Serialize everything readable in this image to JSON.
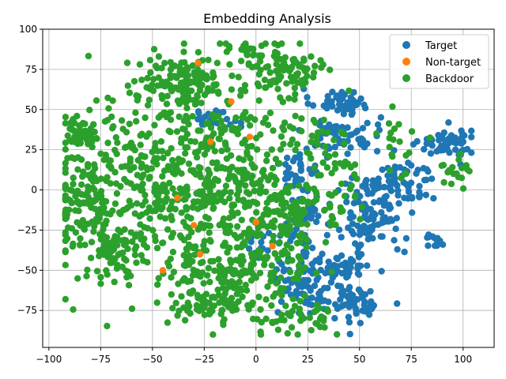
{
  "chart_data": {
    "type": "scatter",
    "title": "Embedding Analysis",
    "xlabel": "",
    "ylabel": "",
    "xlim": [
      -103,
      115
    ],
    "ylim": [
      -98,
      100
    ],
    "xticks": [
      -100,
      -75,
      -50,
      -25,
      0,
      25,
      50,
      75,
      100
    ],
    "yticks": [
      -75,
      -50,
      -25,
      0,
      25,
      50,
      75,
      100
    ],
    "grid": true,
    "legend_position": "top-right",
    "series": [
      {
        "name": "Target",
        "color": "#1f77b4",
        "clusters": [
          {
            "center": [
              40,
              55
            ],
            "spread": [
              7,
              4
            ],
            "count": 45
          },
          {
            "center": [
              42,
              35
            ],
            "spread": [
              9,
              6
            ],
            "count": 60
          },
          {
            "center": [
              93,
              29
            ],
            "spread": [
              7,
              5
            ],
            "count": 55
          },
          {
            "center": [
              68,
              3
            ],
            "spread": [
              10,
              8
            ],
            "count": 80
          },
          {
            "center": [
              55,
              -18
            ],
            "spread": [
              8,
              12
            ],
            "count": 90
          },
          {
            "center": [
              22,
              -15
            ],
            "spread": [
              6,
              8
            ],
            "count": 50
          },
          {
            "center": [
              23,
              -55
            ],
            "spread": [
              8,
              12
            ],
            "count": 90
          },
          {
            "center": [
              43,
              -47
            ],
            "spread": [
              6,
              4
            ],
            "count": 40
          },
          {
            "center": [
              47,
              -70
            ],
            "spread": [
              8,
              6
            ],
            "count": 60
          },
          {
            "center": [
              20,
              14
            ],
            "spread": [
              5,
              6
            ],
            "count": 30
          },
          {
            "center": [
              -20,
              44
            ],
            "spread": [
              6,
              3
            ],
            "count": 25
          },
          {
            "center": [
              85,
              -31
            ],
            "spread": [
              3,
              2
            ],
            "count": 12
          },
          {
            "center": [
              2,
              -37
            ],
            "spread": [
              3,
              4
            ],
            "count": 12
          }
        ]
      },
      {
        "name": "Non-target",
        "color": "#ff7f0e",
        "points": [
          [
            -30,
            -22
          ],
          [
            -27,
            -40
          ],
          [
            -45,
            -50
          ],
          [
            -3,
            33
          ],
          [
            -28,
            79
          ],
          [
            0,
            -20
          ],
          [
            -22,
            30
          ],
          [
            8,
            -35
          ],
          [
            -12,
            55
          ],
          [
            -38,
            -5
          ]
        ]
      },
      {
        "name": "Backdoor",
        "color": "#2ca02c",
        "clusters": [
          {
            "center": [
              -45,
              5
            ],
            "spread": [
              28,
              32
            ],
            "count": 420
          },
          {
            "center": [
              -10,
              10
            ],
            "spread": [
              22,
              34
            ],
            "count": 320
          },
          {
            "center": [
              -85,
              35
            ],
            "spread": [
              4,
              4
            ],
            "count": 40
          },
          {
            "center": [
              -80,
              -5
            ],
            "spread": [
              8,
              12
            ],
            "count": 90
          },
          {
            "center": [
              -70,
              -40
            ],
            "spread": [
              7,
              10
            ],
            "count": 60
          },
          {
            "center": [
              -35,
              68
            ],
            "spread": [
              10,
              7
            ],
            "count": 110
          },
          {
            "center": [
              15,
              75
            ],
            "spread": [
              10,
              8
            ],
            "count": 80
          },
          {
            "center": [
              -15,
              -60
            ],
            "spread": [
              14,
              14
            ],
            "count": 140
          },
          {
            "center": [
              10,
              -30
            ],
            "spread": [
              10,
              18
            ],
            "count": 100
          },
          {
            "center": [
              35,
              10
            ],
            "spread": [
              10,
              20
            ],
            "count": 50
          },
          {
            "center": [
              25,
              -80
            ],
            "spread": [
              10,
              5
            ],
            "count": 40
          },
          {
            "center": [
              -5,
              88
            ],
            "spread": [
              3,
              2
            ],
            "count": 15
          },
          {
            "center": [
              95,
              10
            ],
            "spread": [
              4,
              6
            ],
            "count": 18
          },
          {
            "center": [
              70,
              30
            ],
            "spread": [
              6,
              12
            ],
            "count": 20
          },
          {
            "center": [
              -30,
              -72
            ],
            "spread": [
              8,
              4
            ],
            "count": 30
          }
        ]
      }
    ]
  }
}
